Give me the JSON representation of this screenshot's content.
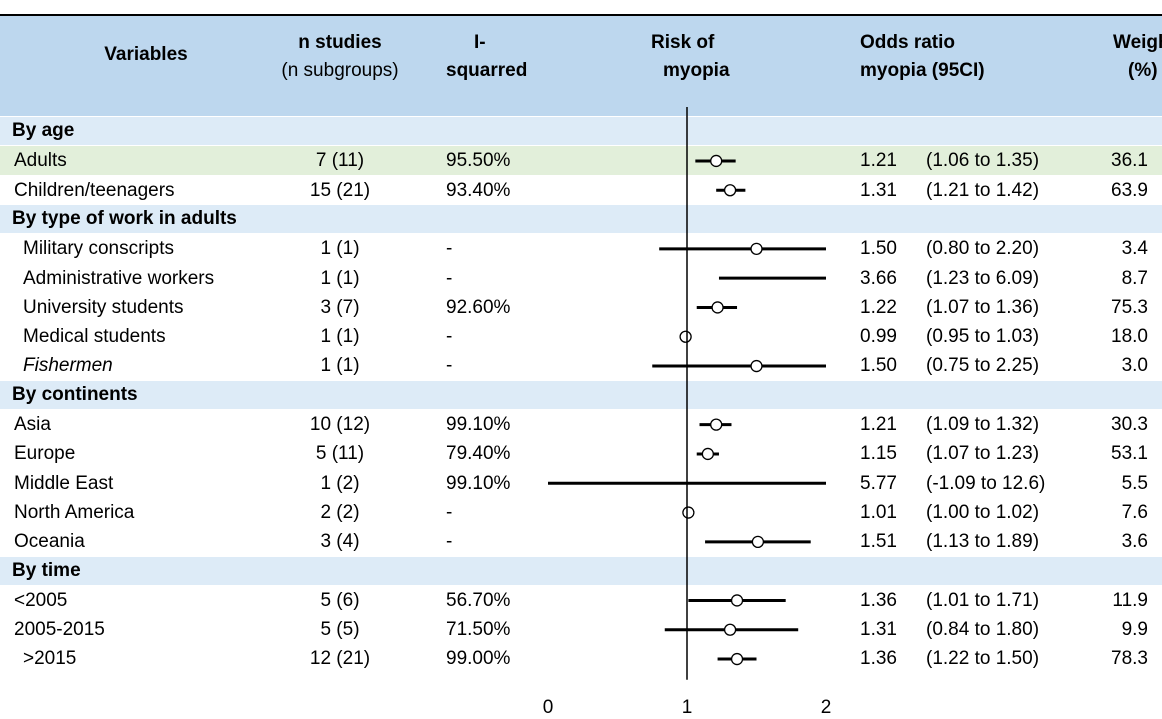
{
  "chart_data": {
    "type": "forest",
    "header": {
      "variables": "Variables",
      "n_studies": "n studies",
      "n_subgroups": "(n subgroups)",
      "isq_1": "I-",
      "isq_2": "squarred",
      "risk_1": "Risk of",
      "risk_2": "myopia",
      "or_1": "Odds ratio",
      "or_2": "myopia (95CI)",
      "weight_1": "Weight",
      "weight_2": "(%)"
    },
    "x_ticks": [
      "0",
      "1",
      "2"
    ],
    "xlim": [
      0,
      2
    ],
    "reference_line": 1,
    "colors": {
      "header_bg": "#bdd7ee",
      "section_bg": "#ddebf7",
      "highlight_bg": "#e2efda",
      "ink": "#000000"
    },
    "rows": [
      {
        "kind": "section",
        "label": "By age"
      },
      {
        "kind": "data",
        "label": "Adults",
        "n": "7 (11)",
        "isq": "95.50%",
        "or_text": "1.21",
        "ci_text": "(1.06 to 1.35)",
        "weight": "36.1",
        "or": 1.21,
        "lo": 1.06,
        "hi": 1.35,
        "highlight": true
      },
      {
        "kind": "data",
        "label": "Children/teenagers",
        "n": "15 (21)",
        "isq": "93.40%",
        "or_text": "1.31",
        "ci_text": "(1.21 to 1.42)",
        "weight": "63.9",
        "or": 1.31,
        "lo": 1.21,
        "hi": 1.42
      },
      {
        "kind": "section",
        "label": "By type of work in adults"
      },
      {
        "kind": "data",
        "label": "Military conscripts",
        "indent": true,
        "n": "1 (1)",
        "isq": "-",
        "or_text": "1.50",
        "ci_text": "(0.80 to 2.20)",
        "weight": "3.4",
        "or": 1.5,
        "lo": 0.8,
        "hi": 2.2
      },
      {
        "kind": "data",
        "label": "Administrative workers",
        "indent": true,
        "n": "1 (1)",
        "isq": "-",
        "or_text": "3.66",
        "ci_text": "(1.23 to 6.09)",
        "weight": "8.7",
        "or": 3.66,
        "lo": 1.23,
        "hi": 6.09
      },
      {
        "kind": "data",
        "label": "University students",
        "indent": true,
        "n": "3 (7)",
        "isq": "92.60%",
        "or_text": "1.22",
        "ci_text": "(1.07 to 1.36)",
        "weight": "75.3",
        "or": 1.22,
        "lo": 1.07,
        "hi": 1.36
      },
      {
        "kind": "data",
        "label": "Medical students",
        "indent": true,
        "n": "1 (1)",
        "isq": "-",
        "or_text": "0.99",
        "ci_text": "(0.95 to 1.03)",
        "weight": "18.0",
        "or": 0.99,
        "lo": 0.95,
        "hi": 1.03
      },
      {
        "kind": "data",
        "label": "Fishermen",
        "indent": true,
        "italic": true,
        "n": "1 (1)",
        "isq": "-",
        "or_text": "1.50",
        "ci_text": "(0.75 to 2.25)",
        "weight": "3.0",
        "or": 1.5,
        "lo": 0.75,
        "hi": 2.25
      },
      {
        "kind": "section",
        "label": "By continents"
      },
      {
        "kind": "data",
        "label": "Asia",
        "n": "10 (12)",
        "isq": "99.10%",
        "or_text": "1.21",
        "ci_text": "(1.09 to 1.32)",
        "weight": "30.3",
        "or": 1.21,
        "lo": 1.09,
        "hi": 1.32
      },
      {
        "kind": "data",
        "label": "Europe",
        "n": "5 (11)",
        "isq": "79.40%",
        "or_text": "1.15",
        "ci_text": "(1.07 to 1.23)",
        "weight": "53.1",
        "or": 1.15,
        "lo": 1.07,
        "hi": 1.23
      },
      {
        "kind": "data",
        "label": "Middle East",
        "n": "1 (2)",
        "isq": "99.10%",
        "or_text": "5.77",
        "ci_text": "(-1.09 to 12.6)",
        "weight": "5.5",
        "or": 5.77,
        "lo": -1.09,
        "hi": 12.6
      },
      {
        "kind": "data",
        "label": "North America",
        "n": "2 (2)",
        "isq": "-",
        "or_text": "1.01",
        "ci_text": "(1.00 to 1.02)",
        "weight": "7.6",
        "or": 1.01,
        "lo": 1.0,
        "hi": 1.02
      },
      {
        "kind": "data",
        "label": "Oceania",
        "n": "3 (4)",
        "isq": "-",
        "or_text": "1.51",
        "ci_text": "(1.13 to 1.89)",
        "weight": "3.6",
        "or": 1.51,
        "lo": 1.13,
        "hi": 1.89
      },
      {
        "kind": "section",
        "label": "By time"
      },
      {
        "kind": "data",
        "label": "<2005",
        "n": "5 (6)",
        "isq": "56.70%",
        "or_text": "1.36",
        "ci_text": "(1.01 to 1.71)",
        "weight": "11.9",
        "or": 1.36,
        "lo": 1.01,
        "hi": 1.71
      },
      {
        "kind": "data",
        "label": "2005-2015",
        "n": "5 (5)",
        "isq": "71.50%",
        "or_text": "1.31",
        "ci_text": "(0.84 to 1.80)",
        "weight": "9.9",
        "or": 1.31,
        "lo": 0.84,
        "hi": 1.8
      },
      {
        "kind": "data",
        "label": ">2015",
        "indent": true,
        "n": "12 (21)",
        "isq": "99.00%",
        "or_text": "1.36",
        "ci_text": "(1.22 to 1.50)",
        "weight": "78.3",
        "or": 1.36,
        "lo": 1.22,
        "hi": 1.5
      }
    ]
  }
}
